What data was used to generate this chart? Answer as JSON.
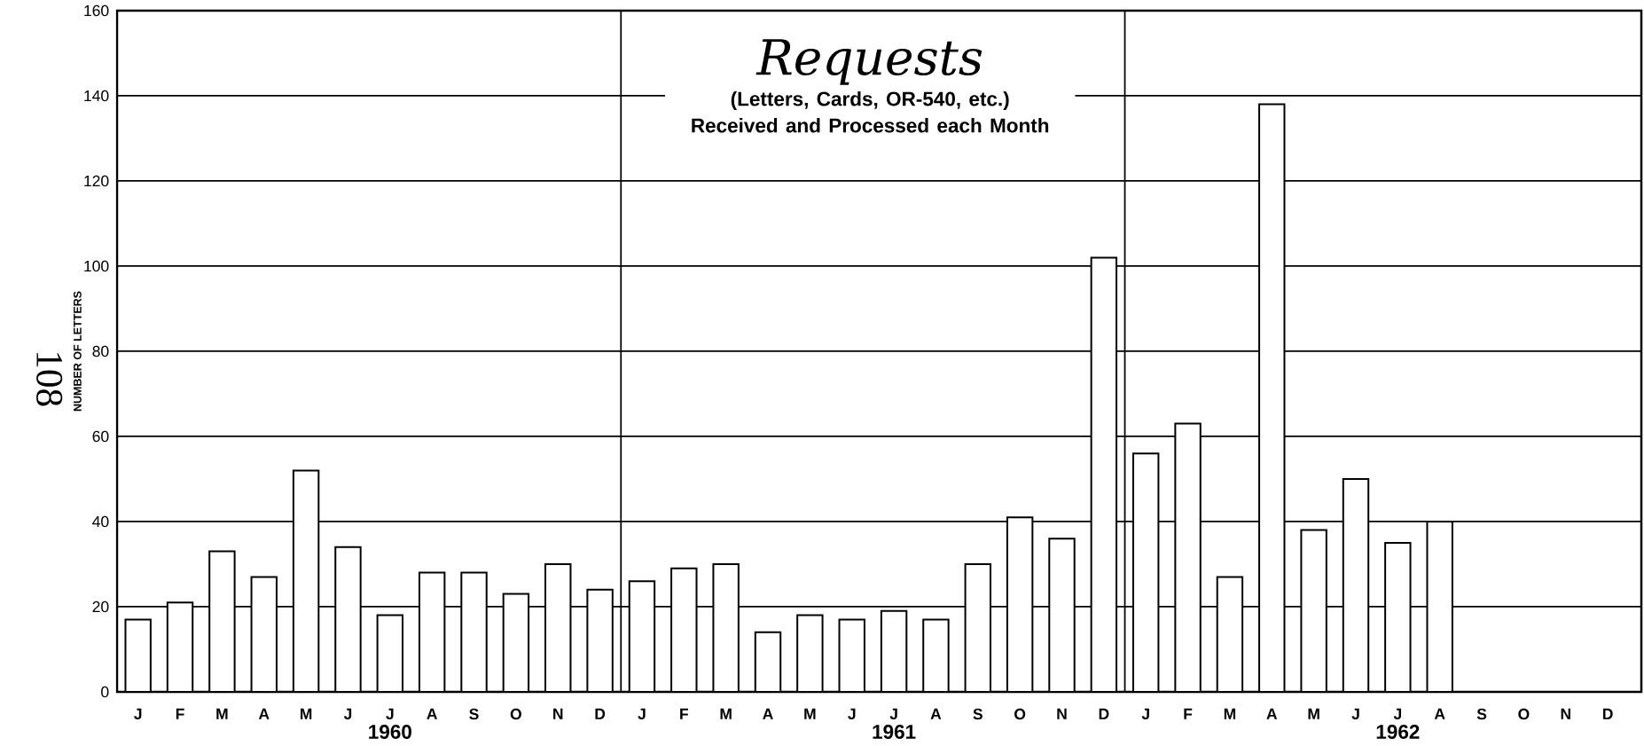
{
  "chart_data": {
    "type": "bar",
    "title": "Requests",
    "subtitle": "(Letters, Cards, OR-540, etc.) Received and Processed each Month",
    "ylabel": "NUMBER OF LETTERS",
    "categories": [
      "J",
      "F",
      "M",
      "A",
      "M",
      "J",
      "J",
      "A",
      "S",
      "O",
      "N",
      "D",
      "J",
      "F",
      "M",
      "A",
      "M",
      "J",
      "J",
      "A",
      "S",
      "O",
      "N",
      "D",
      "J",
      "F",
      "M",
      "A",
      "M",
      "J",
      "J",
      "A",
      "S",
      "O",
      "N",
      "D"
    ],
    "values": [
      17,
      21,
      33,
      27,
      52,
      34,
      18,
      28,
      28,
      23,
      30,
      24,
      26,
      29,
      30,
      14,
      18,
      17,
      19,
      17,
      30,
      41,
      36,
      102,
      56,
      63,
      27,
      138,
      38,
      50,
      35,
      40,
      null,
      null,
      null,
      null
    ],
    "color": "#000000",
    "ylim": [
      0,
      160
    ],
    "yticks": [
      0,
      20,
      40,
      60,
      80,
      100,
      120,
      140,
      160
    ],
    "grid": "y",
    "annotations": [
      "1960",
      "1961",
      "1962",
      "108"
    ]
  }
}
